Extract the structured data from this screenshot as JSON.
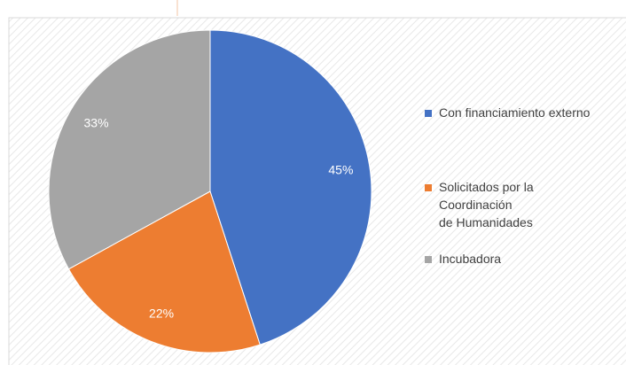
{
  "chart_data": {
    "type": "pie",
    "categories": [
      "Con financiamiento  externo",
      "Solicitados por la\nCoordinación\nde Humanidades",
      "Incubadora"
    ],
    "values": [
      45,
      22,
      33
    ],
    "value_labels": [
      "45%",
      "22%",
      "33%"
    ],
    "colors": [
      "#4472c4",
      "#ed7d31",
      "#a5a5a5"
    ],
    "legend": "right"
  }
}
